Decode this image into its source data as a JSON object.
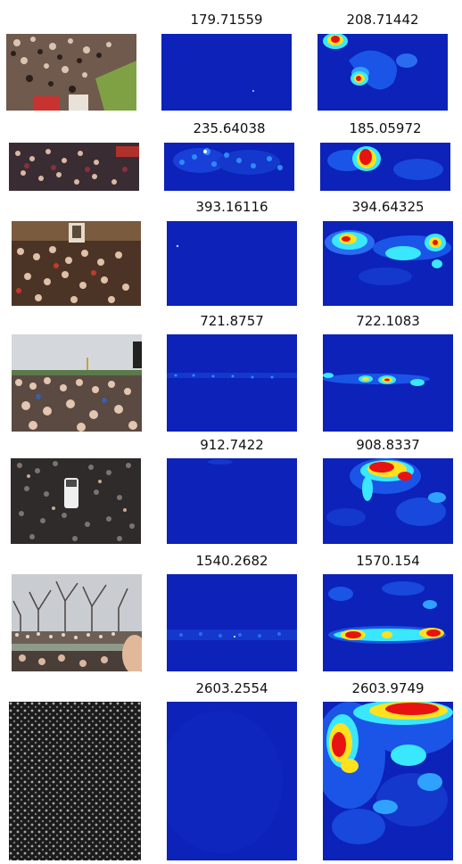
{
  "figure": {
    "rows": [
      {
        "scene": "dense-crowd-scramble",
        "col2_value": "179.71559",
        "col3_value": "208.71442"
      },
      {
        "scene": "dense-crowd-street",
        "col2_value": "235.64038",
        "col3_value": "185.05972"
      },
      {
        "scene": "crowd-rally-portrait",
        "col2_value": "393.16116",
        "col3_value": "394.64325"
      },
      {
        "scene": "crowd-field-sky",
        "col2_value": "721.8757",
        "col3_value": "722.1083"
      },
      {
        "scene": "crowd-around-bus",
        "col2_value": "912.7422",
        "col3_value": "908.8337"
      },
      {
        "scene": "crowd-park-trees",
        "col2_value": "1540.2682",
        "col3_value": "1570.154"
      },
      {
        "scene": "grayscale-dense-crowd",
        "col2_value": "2603.2554",
        "col3_value": "2603.9749"
      }
    ]
  },
  "colors": {
    "heatmap_background": "#0c22b8",
    "heatmap_blob_light": "#2fa2ff",
    "heatmap_blob_cyan": "#39e8ff",
    "heatmap_blob_yellow": "#ffe11e",
    "heatmap_blob_red": "#e81212"
  }
}
